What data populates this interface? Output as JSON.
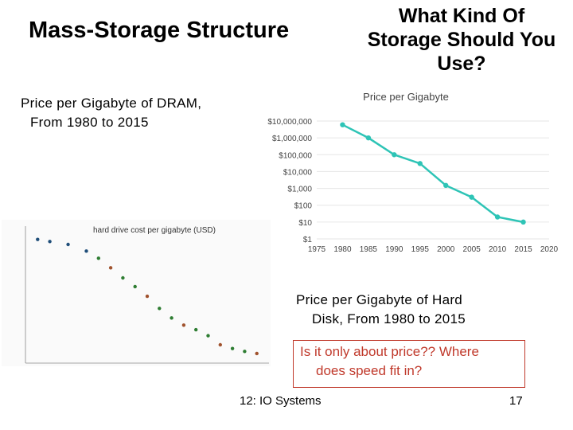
{
  "slide": {
    "title_left": "Mass-Storage Structure",
    "title_right_lines": [
      "What Kind Of",
      "Storage Should You",
      "Use?"
    ],
    "dram_caption_lines": [
      "Price per Gigabyte of DRAM,",
      "From 1980 to 2015"
    ],
    "hd_caption_lines": [
      "Price per Gigabyte of Hard",
      "Disk, From 1980 to 2015"
    ],
    "question_lines": [
      "Is it only about price?? Where",
      "does speed fit in?"
    ],
    "footer_center": "12: IO Systems",
    "page_number": "17",
    "question_color": "#c0392b"
  },
  "chart_data": [
    {
      "type": "line",
      "title": "Price per Gigabyte",
      "x": [
        1980,
        1985,
        1990,
        1995,
        2000,
        2005,
        2010,
        2015
      ],
      "series": [
        {
          "values": [
            6000000,
            1000000,
            100000,
            30000,
            1500,
            300,
            20,
            10
          ]
        }
      ],
      "x_ticks": [
        "1975",
        "1980",
        "1985",
        "1990",
        "1995",
        "2000",
        "2005",
        "2010",
        "2015",
        "2020"
      ],
      "y_ticks": [
        "$10,000,000",
        "$1,000,000",
        "$100,000",
        "$10,000",
        "$1,000",
        "$100",
        "$10",
        "$1"
      ],
      "xlim": [
        1975,
        2020
      ],
      "ylim": [
        1,
        10000000
      ],
      "yscale": "log",
      "grid": "horizontal",
      "color": "#2ec4b6"
    },
    {
      "type": "scatter",
      "title": "hard drive cost per gigabyte (USD)",
      "yscale": "log",
      "grid": "none",
      "colors": [
        "#1f4e79",
        "#2e7d32",
        "#a0522d"
      ],
      "points_approx": [
        {
          "x": 1980,
          "y": 200000
        },
        {
          "x": 1982,
          "y": 150000
        },
        {
          "x": 1985,
          "y": 100000
        },
        {
          "x": 1988,
          "y": 40000
        },
        {
          "x": 1990,
          "y": 15000
        },
        {
          "x": 1992,
          "y": 4000
        },
        {
          "x": 1994,
          "y": 1000
        },
        {
          "x": 1996,
          "y": 300
        },
        {
          "x": 1998,
          "y": 80
        },
        {
          "x": 2000,
          "y": 15
        },
        {
          "x": 2002,
          "y": 4
        },
        {
          "x": 2004,
          "y": 1.5
        },
        {
          "x": 2006,
          "y": 0.8
        },
        {
          "x": 2008,
          "y": 0.35
        },
        {
          "x": 2010,
          "y": 0.1
        },
        {
          "x": 2012,
          "y": 0.06
        },
        {
          "x": 2014,
          "y": 0.04
        },
        {
          "x": 2016,
          "y": 0.03
        }
      ]
    }
  ]
}
